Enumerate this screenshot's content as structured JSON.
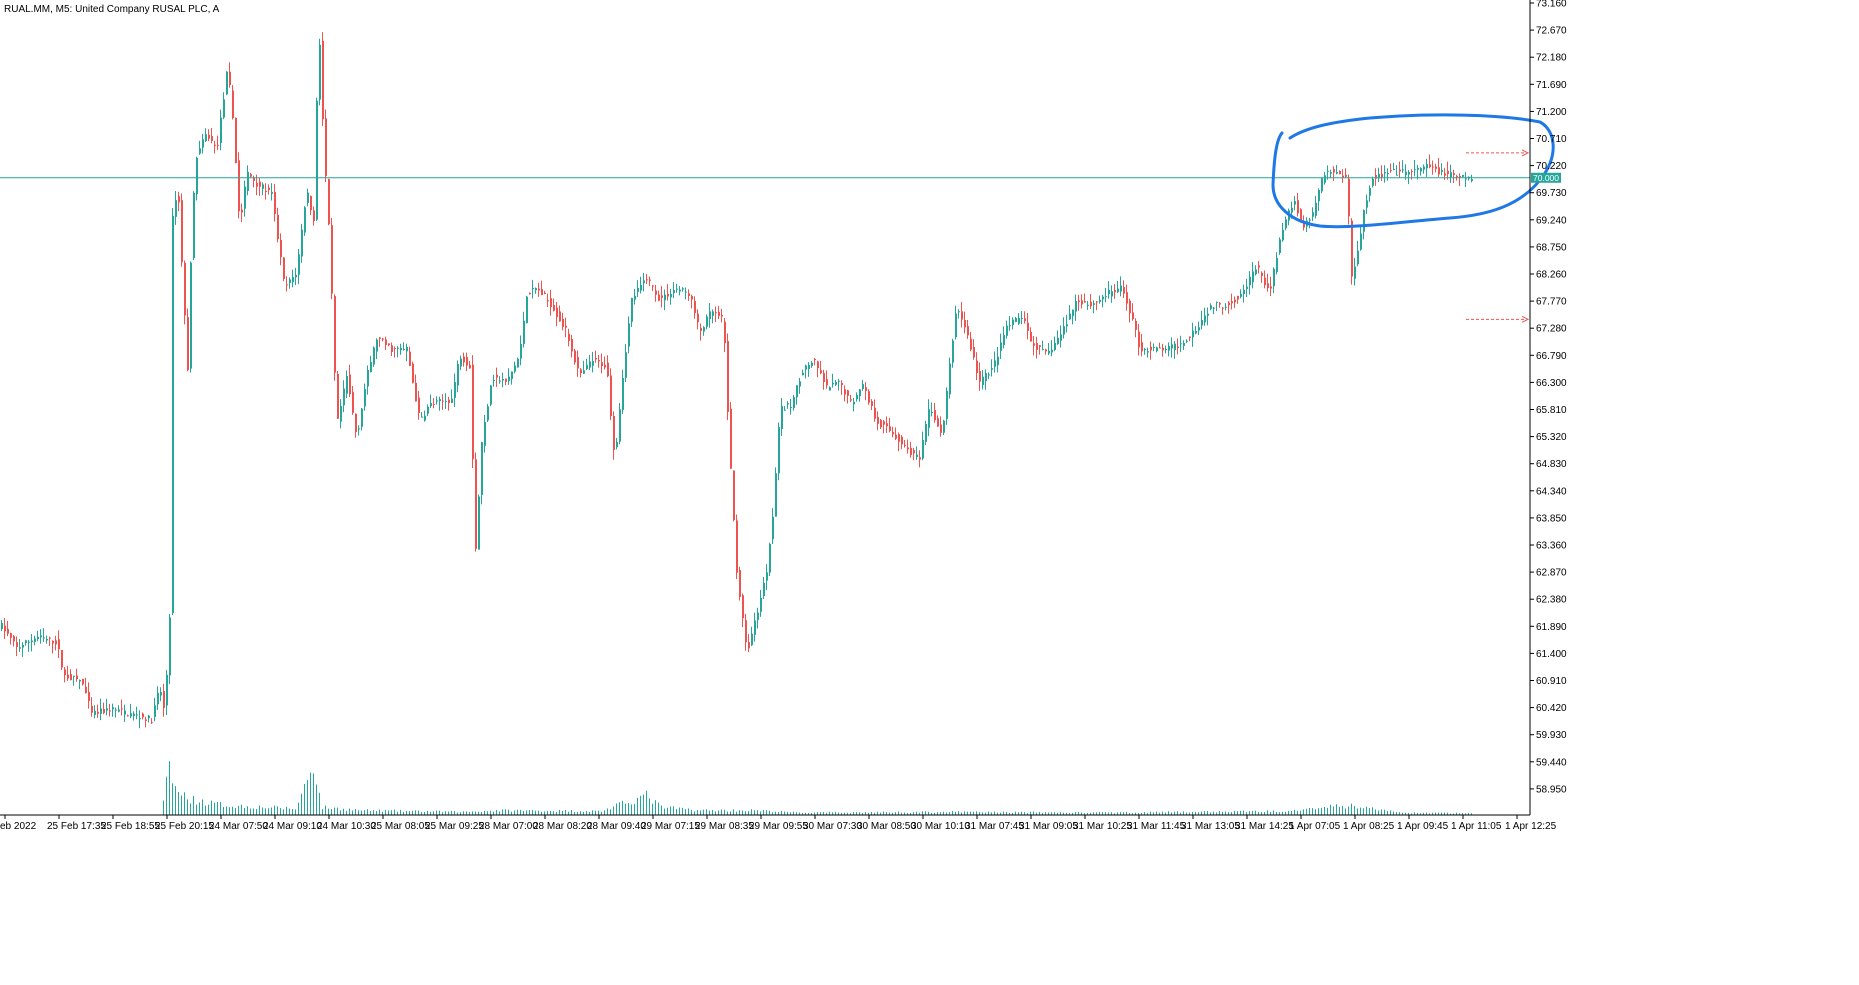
{
  "header": {
    "title": "RUAL.MM, M5:  United Company RUSAL PLC, A"
  },
  "colors": {
    "up": "#26a69a",
    "down": "#ef5350",
    "volume": "#26a69a",
    "level_line": "#26a69a",
    "level_label_bg": "#26a69a",
    "annotation": "#1e78e6",
    "target_arrow": "#ef5350",
    "axis": "#000000"
  },
  "chart_data": {
    "type": "candlestick",
    "symbol": "RUAL.MM",
    "timeframe": "M5",
    "description": "United Company RUSAL PLC, A",
    "ylim": [
      58.5,
      73.16
    ],
    "y_ticks": [
      "73.160",
      "72.670",
      "72.180",
      "71.690",
      "71.200",
      "70.710",
      "70.220",
      "69.730",
      "69.240",
      "68.750",
      "68.260",
      "67.770",
      "67.280",
      "66.790",
      "66.300",
      "65.810",
      "65.320",
      "64.830",
      "64.340",
      "63.850",
      "63.360",
      "62.870",
      "62.380",
      "61.890",
      "61.400",
      "60.910",
      "60.420",
      "59.930",
      "59.440",
      "58.950"
    ],
    "x_ticks": [
      "eb 2022",
      "25 Feb 17:35",
      "25 Feb 18:55",
      "25 Feb 20:15",
      "24 Mar 07:50",
      "24 Mar 09:10",
      "24 Mar 10:30",
      "25 Mar 08:05",
      "25 Mar 09:25",
      "28 Mar 07:00",
      "28 Mar 08:20",
      "28 Mar 09:40",
      "29 Mar 07:15",
      "29 Mar 08:35",
      "29 Mar 09:55",
      "30 Mar 07:30",
      "30 Mar 08:50",
      "30 Mar 10:10",
      "31 Mar 07:45",
      "31 Mar 09:05",
      "31 Mar 10:25",
      "31 Mar 11:45",
      "31 Mar 13:05",
      "31 Mar 14:25",
      "1 Apr 07:05",
      "1 Apr 08:25",
      "1 Apr 09:45",
      "1 Apr 11:05",
      "1 Apr 12:25"
    ],
    "horizontal_line": {
      "value": 70.0,
      "label": "70.000"
    },
    "price_path": [
      [
        0,
        61.9
      ],
      [
        15,
        61.5
      ],
      [
        35,
        61.7
      ],
      [
        55,
        61.6
      ],
      [
        62,
        61.0
      ],
      [
        80,
        60.9
      ],
      [
        90,
        60.3
      ],
      [
        110,
        60.4
      ],
      [
        130,
        60.3
      ],
      [
        150,
        60.2
      ],
      [
        158,
        60.8
      ],
      [
        163,
        60.3
      ],
      [
        168,
        62.1
      ],
      [
        169,
        69.0
      ],
      [
        176,
        69.9
      ],
      [
        180,
        68.5
      ],
      [
        186,
        66.5
      ],
      [
        190,
        69.2
      ],
      [
        195,
        70.4
      ],
      [
        205,
        70.8
      ],
      [
        215,
        70.5
      ],
      [
        226,
        72.0
      ],
      [
        232,
        70.9
      ],
      [
        238,
        69.1
      ],
      [
        245,
        70.1
      ],
      [
        255,
        69.9
      ],
      [
        270,
        69.7
      ],
      [
        283,
        68.0
      ],
      [
        295,
        68.3
      ],
      [
        305,
        69.8
      ],
      [
        312,
        69.2
      ],
      [
        317,
        72.9
      ],
      [
        322,
        70.6
      ],
      [
        328,
        68.8
      ],
      [
        335,
        65.5
      ],
      [
        345,
        66.4
      ],
      [
        355,
        65.3
      ],
      [
        365,
        66.4
      ],
      [
        375,
        67.1
      ],
      [
        390,
        66.9
      ],
      [
        405,
        66.9
      ],
      [
        418,
        65.6
      ],
      [
        428,
        65.9
      ],
      [
        450,
        66.0
      ],
      [
        458,
        66.8
      ],
      [
        468,
        66.6
      ],
      [
        474,
        63.3
      ],
      [
        480,
        65.2
      ],
      [
        490,
        66.4
      ],
      [
        505,
        66.3
      ],
      [
        518,
        66.8
      ],
      [
        525,
        67.9
      ],
      [
        535,
        68.0
      ],
      [
        550,
        67.7
      ],
      [
        565,
        67.2
      ],
      [
        578,
        66.4
      ],
      [
        590,
        66.7
      ],
      [
        605,
        66.6
      ],
      [
        613,
        64.9
      ],
      [
        622,
        66.6
      ],
      [
        630,
        67.8
      ],
      [
        645,
        68.2
      ],
      [
        658,
        67.8
      ],
      [
        675,
        68.0
      ],
      [
        688,
        67.9
      ],
      [
        698,
        67.2
      ],
      [
        710,
        67.6
      ],
      [
        722,
        67.4
      ],
      [
        728,
        65.0
      ],
      [
        735,
        62.9
      ],
      [
        745,
        61.4
      ],
      [
        755,
        62.1
      ],
      [
        765,
        62.9
      ],
      [
        772,
        64.1
      ],
      [
        778,
        65.8
      ],
      [
        790,
        65.9
      ],
      [
        800,
        66.5
      ],
      [
        812,
        66.7
      ],
      [
        825,
        66.2
      ],
      [
        838,
        66.3
      ],
      [
        850,
        65.9
      ],
      [
        860,
        66.3
      ],
      [
        875,
        65.6
      ],
      [
        890,
        65.4
      ],
      [
        905,
        65.1
      ],
      [
        918,
        64.9
      ],
      [
        928,
        65.9
      ],
      [
        940,
        65.3
      ],
      [
        948,
        66.6
      ],
      [
        955,
        67.7
      ],
      [
        965,
        67.2
      ],
      [
        978,
        66.3
      ],
      [
        992,
        66.6
      ],
      [
        1005,
        67.3
      ],
      [
        1020,
        67.5
      ],
      [
        1030,
        67.0
      ],
      [
        1045,
        66.8
      ],
      [
        1060,
        67.2
      ],
      [
        1075,
        67.8
      ],
      [
        1090,
        67.7
      ],
      [
        1105,
        67.9
      ],
      [
        1120,
        68.0
      ],
      [
        1130,
        67.5
      ],
      [
        1138,
        66.9
      ],
      [
        1150,
        66.9
      ],
      [
        1165,
        66.9
      ],
      [
        1180,
        67.0
      ],
      [
        1195,
        67.3
      ],
      [
        1210,
        67.7
      ],
      [
        1225,
        67.7
      ],
      [
        1240,
        67.9
      ],
      [
        1255,
        68.4
      ],
      [
        1268,
        67.9
      ],
      [
        1278,
        68.9
      ],
      [
        1292,
        69.6
      ],
      [
        1302,
        69.1
      ],
      [
        1312,
        69.4
      ],
      [
        1322,
        70.1
      ],
      [
        1335,
        70.1
      ],
      [
        1345,
        70.0
      ],
      [
        1350,
        68.2
      ],
      [
        1356,
        68.7
      ],
      [
        1362,
        69.4
      ],
      [
        1370,
        70.0
      ],
      [
        1390,
        70.1
      ],
      [
        1410,
        70.1
      ],
      [
        1425,
        70.2
      ],
      [
        1440,
        70.1
      ],
      [
        1455,
        70.0
      ],
      [
        1470,
        70.0
      ]
    ],
    "volume_profile": [
      [
        0,
        0
      ],
      [
        160,
        0
      ],
      [
        168,
        62
      ],
      [
        175,
        30
      ],
      [
        190,
        20
      ],
      [
        210,
        15
      ],
      [
        230,
        12
      ],
      [
        265,
        10
      ],
      [
        295,
        8
      ],
      [
        312,
        70
      ],
      [
        320,
        10
      ],
      [
        360,
        6
      ],
      [
        460,
        4
      ],
      [
        500,
        6
      ],
      [
        600,
        5
      ],
      [
        645,
        25
      ],
      [
        660,
        10
      ],
      [
        700,
        6
      ],
      [
        750,
        6
      ],
      [
        800,
        3
      ],
      [
        950,
        4
      ],
      [
        1100,
        3
      ],
      [
        1280,
        5
      ],
      [
        1300,
        8
      ],
      [
        1350,
        12
      ],
      [
        1400,
        3
      ],
      [
        1500,
        2
      ]
    ],
    "annotations": [
      {
        "type": "hand-drawn-ellipse",
        "note": "blue freehand loop around recent consolidation near 70.000"
      },
      {
        "type": "dashed-arrow",
        "value": 70.45
      },
      {
        "type": "dashed-arrow",
        "value": 67.44
      }
    ]
  }
}
